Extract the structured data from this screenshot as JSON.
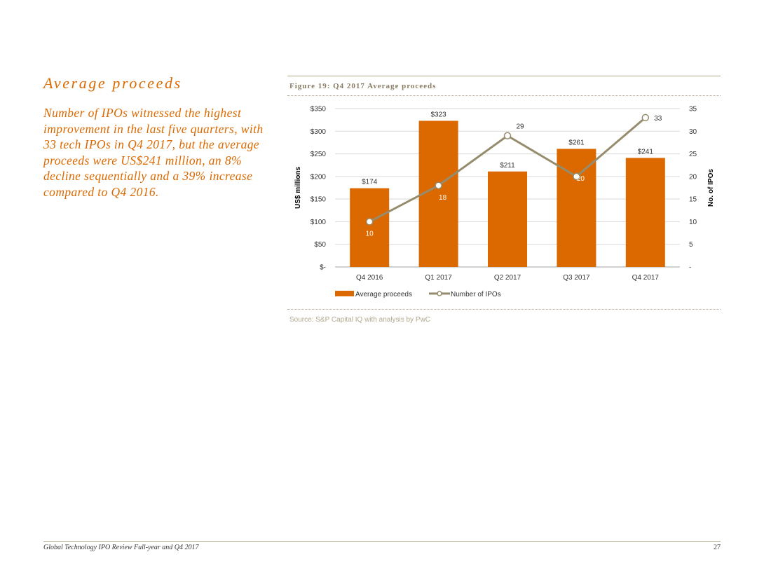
{
  "section": {
    "title": "Average proceeds",
    "body": "Number of IPOs witnessed the highest improvement in the last five quarters, with 33 tech IPOs in Q4 2017, but the average proceeds were US$241 million, an 8% decline sequentially and a 39% increase compared to Q4 2016."
  },
  "figure": {
    "title": "Figure 19: Q4 2017 Average proceeds",
    "source": "Source: S&P Capital IQ with analysis by PwC"
  },
  "chart_data": {
    "type": "bar",
    "categories": [
      "Q4 2016",
      "Q1 2017",
      "Q2 2017",
      "Q3 2017",
      "Q4 2017"
    ],
    "series": [
      {
        "name": "Average proceeds",
        "type": "bar",
        "axis": "left",
        "values": [
          174,
          323,
          211,
          261,
          241
        ],
        "labels": [
          "$174",
          "$323",
          "$211",
          "$261",
          "$241"
        ],
        "color": "#dc6900"
      },
      {
        "name": "Number of IPOs",
        "type": "line",
        "axis": "right",
        "values": [
          10,
          18,
          29,
          20,
          33
        ],
        "labels": [
          "10",
          "18",
          "29",
          "20",
          "33"
        ],
        "color": "#968c6d"
      }
    ],
    "ylabel": "US$ millions",
    "y2label": "No. of IPOs",
    "ylim": [
      0,
      350
    ],
    "y2lim": [
      0,
      35
    ],
    "yticks": [
      "$-",
      "$50",
      "$100",
      "$150",
      "$200",
      "$250",
      "$300",
      "$350"
    ],
    "y2ticks": [
      "-",
      "5",
      "10",
      "15",
      "20",
      "25",
      "30",
      "35"
    ],
    "grid": true,
    "legend": "bottom"
  },
  "footer": {
    "text": "Global Technology IPO Review Full-year and Q4 2017",
    "page": "27"
  }
}
